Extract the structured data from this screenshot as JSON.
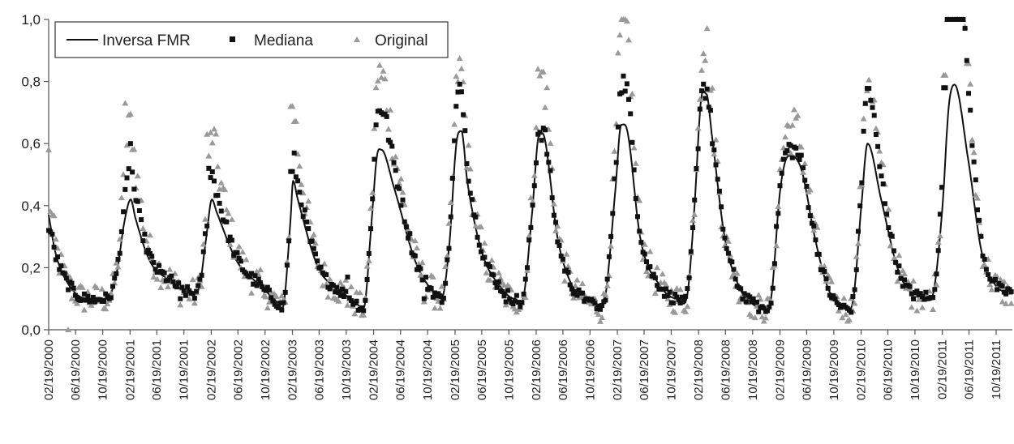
{
  "chart_data": {
    "type": "line",
    "title": "",
    "xlabel": "",
    "ylabel": "",
    "ylim": [
      0,
      1.0
    ],
    "xlim": [
      "2000-02-19",
      "2011-12-31"
    ],
    "grid": false,
    "legend_position": "top-left",
    "y_ticks": [
      "0,0",
      "0,2",
      "0,4",
      "0,6",
      "0,8",
      "1,0"
    ],
    "x_ticks": [
      "02/19/2000",
      "06/19/2000",
      "10/19/2000",
      "02/19/2001",
      "06/19/2001",
      "10/19/2001",
      "02/19/2002",
      "06/19/2002",
      "10/19/2002",
      "02/19/2003",
      "06/19/2003",
      "10/19/2003",
      "02/19/2004",
      "06/19/2004",
      "10/19/2004",
      "02/19/2005",
      "06/19/2005",
      "10/19/2005",
      "02/19/2006",
      "06/19/2006",
      "10/19/2006",
      "02/19/2007",
      "06/19/2007",
      "10/19/2007",
      "02/19/2008",
      "06/19/2008",
      "10/19/2008",
      "02/19/2009",
      "06/19/2009",
      "10/19/2009",
      "02/19/2010",
      "06/19/2010",
      "10/19/2010",
      "02/19/2011",
      "06/19/2011",
      "10/19/2011"
    ],
    "series": [
      {
        "name": "Inversa FMR",
        "style": "line",
        "color": "#111111",
        "x": [
          "2000-02-19",
          "2000-03-20",
          "2000-05-15",
          "2000-08-10",
          "2000-11-05",
          "2000-12-20",
          "2001-01-25",
          "2001-02-22",
          "2001-03-15",
          "2001-05-20",
          "2001-08-15",
          "2001-11-15",
          "2001-12-28",
          "2002-01-28",
          "2002-02-22",
          "2002-03-15",
          "2002-06-15",
          "2002-10-01",
          "2002-12-10",
          "2003-01-05",
          "2003-02-10",
          "2003-02-22",
          "2003-03-15",
          "2003-06-15",
          "2003-09-15",
          "2003-11-25",
          "2004-01-05",
          "2004-02-10",
          "2004-03-05",
          "2004-03-25",
          "2004-05-20",
          "2004-08-25",
          "2004-11-15",
          "2004-12-20",
          "2005-01-25",
          "2005-02-25",
          "2005-03-20",
          "2005-04-15",
          "2005-06-20",
          "2005-09-10",
          "2005-11-15",
          "2005-12-25",
          "2006-02-01",
          "2006-03-05",
          "2006-03-28",
          "2006-05-25",
          "2006-07-25",
          "2006-09-20",
          "2006-11-10",
          "2006-12-25",
          "2007-02-10",
          "2007-03-08",
          "2007-04-05",
          "2007-06-01",
          "2007-09-01",
          "2007-11-20",
          "2008-01-01",
          "2008-02-01",
          "2008-03-01",
          "2008-03-25",
          "2008-04-20",
          "2008-06-15",
          "2008-08-25",
          "2008-10-25",
          "2008-12-01",
          "2009-01-10",
          "2009-02-20",
          "2009-03-30",
          "2009-05-25",
          "2009-07-25",
          "2009-09-20",
          "2009-11-10",
          "2009-12-10",
          "2010-01-15",
          "2010-02-20",
          "2010-03-20",
          "2010-05-20",
          "2010-08-01",
          "2010-10-01",
          "2010-12-01",
          "2011-01-10",
          "2011-02-20",
          "2011-03-20",
          "2011-04-15",
          "2011-06-15",
          "2011-08-15",
          "2011-10-20",
          "2011-12-31"
        ],
        "y": [
          0.37,
          0.25,
          0.15,
          0.1,
          0.1,
          0.18,
          0.35,
          0.42,
          0.36,
          0.22,
          0.16,
          0.12,
          0.14,
          0.3,
          0.42,
          0.38,
          0.22,
          0.14,
          0.09,
          0.07,
          0.35,
          0.48,
          0.42,
          0.2,
          0.13,
          0.09,
          0.07,
          0.35,
          0.56,
          0.58,
          0.46,
          0.22,
          0.12,
          0.1,
          0.28,
          0.6,
          0.64,
          0.48,
          0.25,
          0.14,
          0.1,
          0.11,
          0.38,
          0.63,
          0.62,
          0.3,
          0.15,
          0.1,
          0.08,
          0.1,
          0.45,
          0.66,
          0.64,
          0.3,
          0.14,
          0.1,
          0.12,
          0.4,
          0.74,
          0.76,
          0.62,
          0.3,
          0.13,
          0.08,
          0.07,
          0.1,
          0.45,
          0.56,
          0.52,
          0.3,
          0.14,
          0.08,
          0.07,
          0.1,
          0.4,
          0.6,
          0.42,
          0.2,
          0.12,
          0.11,
          0.12,
          0.4,
          0.72,
          0.79,
          0.55,
          0.25,
          0.14,
          0.12
        ]
      },
      {
        "name": "Mediana",
        "style": "square",
        "color": "#111111",
        "peaks": [
          [
            "2000-02-19",
            0.32
          ],
          [
            "2001-02-20",
            0.6
          ],
          [
            "2002-02-10",
            0.52
          ],
          [
            "2003-02-15",
            0.51
          ],
          [
            "2004-02-28",
            0.66
          ],
          [
            "2005-02-25",
            0.72
          ],
          [
            "2006-03-01",
            0.63
          ],
          [
            "2007-03-01",
            0.76
          ],
          [
            "2008-03-05",
            0.77
          ],
          [
            "2009-03-15",
            0.57
          ],
          [
            "2010-03-01",
            0.64
          ],
          [
            "2011-03-01",
            0.78
          ]
        ],
        "troughs": [
          [
            "2000-09-15",
            0.09
          ],
          [
            "2001-10-01",
            0.1
          ],
          [
            "2002-10-15",
            0.13
          ],
          [
            "2003-10-25",
            0.17
          ],
          [
            "2004-10-05",
            0.1
          ],
          [
            "2005-10-05",
            0.09
          ],
          [
            "2006-10-05",
            0.1
          ],
          [
            "2007-10-05",
            0.11
          ],
          [
            "2008-10-25",
            0.1
          ],
          [
            "2009-10-15",
            0.11
          ],
          [
            "2010-10-20",
            0.12
          ],
          [
            "2011-12-15",
            0.13
          ]
        ]
      },
      {
        "name": "Original",
        "style": "triangle",
        "color": "#999999",
        "peaks": [
          [
            "2000-02-19",
            0.58
          ],
          [
            "2001-01-25",
            0.73
          ],
          [
            "2002-02-01",
            0.63
          ],
          [
            "2003-02-15",
            0.72
          ],
          [
            "2004-03-01",
            0.78
          ],
          [
            "2005-03-01",
            0.8
          ],
          [
            "2006-03-15",
            0.83
          ],
          [
            "2007-03-01",
            0.95
          ],
          [
            "2008-03-10",
            0.89
          ],
          [
            "2009-03-20",
            0.66
          ],
          [
            "2010-03-01",
            0.68
          ],
          [
            "2011-03-01",
            0.82
          ]
        ],
        "troughs": [
          [
            "2000-05-20",
            0.0
          ],
          [
            "2001-10-01",
            0.08
          ],
          [
            "2002-10-15",
            0.11
          ],
          [
            "2003-10-20",
            0.16
          ],
          [
            "2004-10-05",
            0.09
          ],
          [
            "2005-10-05",
            0.08
          ],
          [
            "2006-10-05",
            0.09
          ],
          [
            "2007-10-05",
            0.1
          ],
          [
            "2008-10-25",
            0.09
          ],
          [
            "2009-10-15",
            0.1
          ],
          [
            "2010-10-20",
            0.11
          ],
          [
            "2011-12-15",
            0.12
          ]
        ]
      }
    ]
  }
}
